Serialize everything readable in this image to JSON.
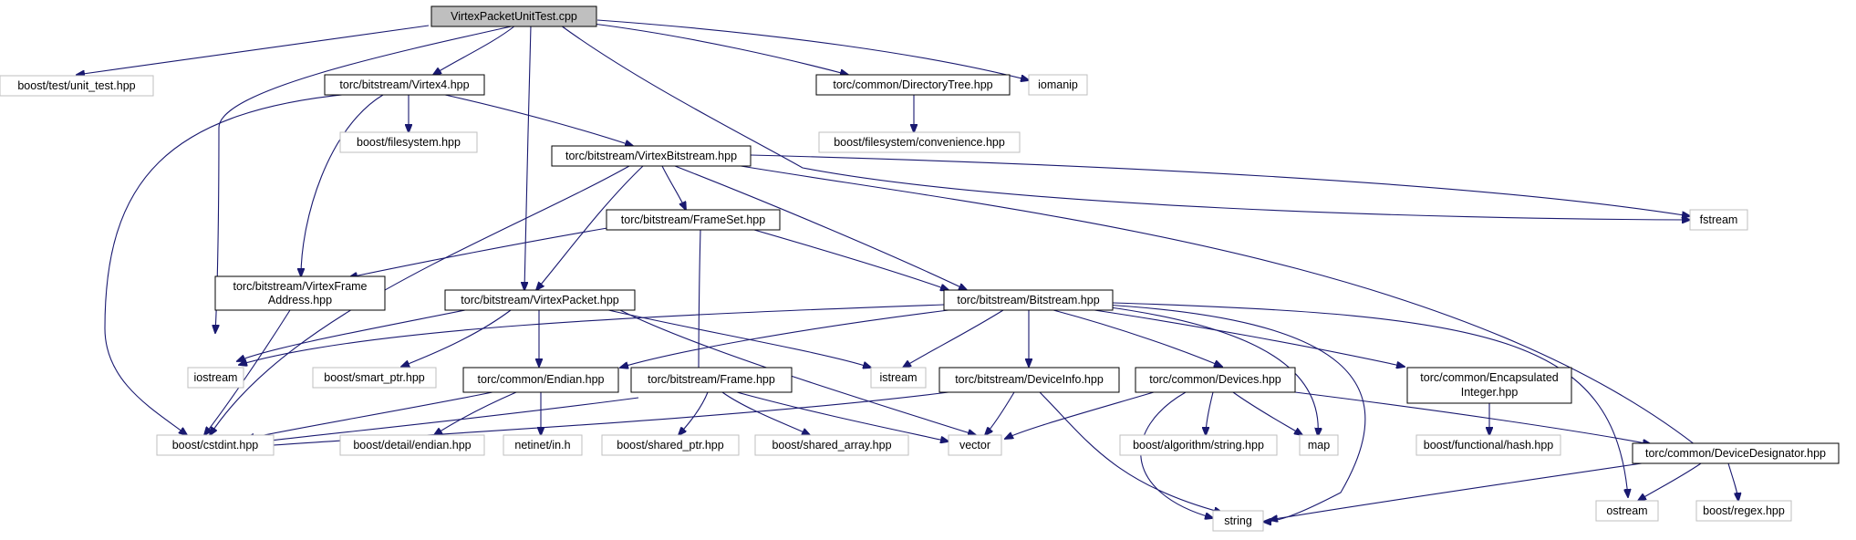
{
  "graph": {
    "title": "VirtexPacketUnitTest.cpp",
    "nodes": {
      "main": "VirtexPacketUnitTest.cpp",
      "unit_test": "boost/test/unit_test.hpp",
      "virtex4": "torc/bitstream/Virtex4.hpp",
      "dirtree": "torc/common/DirectoryTree.hpp",
      "iomanip": "iomanip",
      "filesystem": "boost/filesystem.hpp",
      "virtexbitstream": "torc/bitstream/VirtexBitstream.hpp",
      "convenience": "boost/filesystem/convenience.hpp",
      "fstream": "fstream",
      "frameset": "torc/bitstream/FrameSet.hpp",
      "vfa_line1": "torc/bitstream/VirtexFrame",
      "vfa_line2": "Address.hpp",
      "virtexpacket": "torc/bitstream/VirtexPacket.hpp",
      "bitstream": "torc/bitstream/Bitstream.hpp",
      "iostream": "iostream",
      "smart_ptr": "boost/smart_ptr.hpp",
      "endian": "torc/common/Endian.hpp",
      "frame": "torc/bitstream/Frame.hpp",
      "istream": "istream",
      "deviceinfo": "torc/bitstream/DeviceInfo.hpp",
      "devices": "torc/common/Devices.hpp",
      "encint_line1": "torc/common/Encapsulated",
      "encint_line2": "Integer.hpp",
      "cstdint": "boost/cstdint.hpp",
      "detail_endian": "boost/detail/endian.hpp",
      "netinet": "netinet/in.h",
      "shared_ptr": "boost/shared_ptr.hpp",
      "shared_array": "boost/shared_array.hpp",
      "vector": "vector",
      "algo_string": "boost/algorithm/string.hpp",
      "map": "map",
      "functional_hash": "boost/functional/hash.hpp",
      "devicedesignator": "torc/common/DeviceDesignator.hpp",
      "string": "string",
      "ostream": "ostream",
      "regex": "boost/regex.hpp"
    },
    "colors": {
      "edge": "#191970",
      "main_fill": "#bfbfbf",
      "local_border": "#000000",
      "external_border": "#bfbfbf"
    }
  }
}
